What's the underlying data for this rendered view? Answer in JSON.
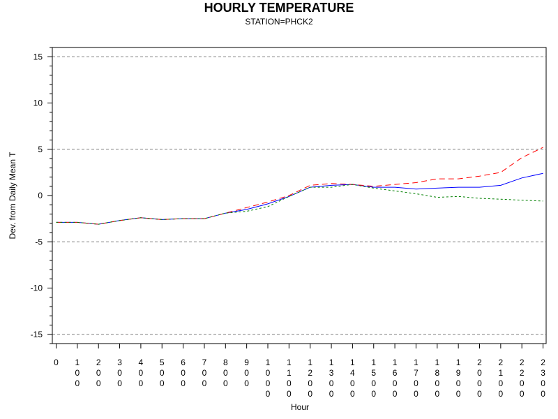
{
  "chart_data": {
    "type": "line",
    "title": "HOURLY TEMPERATURE",
    "subtitle": "STATION=PHCK2",
    "xlabel": "Hour",
    "ylabel": "Dev. from Daily Mean T",
    "x": [
      0,
      100,
      200,
      300,
      400,
      500,
      600,
      700,
      800,
      900,
      1000,
      1100,
      1200,
      1300,
      1400,
      1500,
      1600,
      1700,
      1800,
      1900,
      2000,
      2100,
      2200,
      2300
    ],
    "x_tick_labels": [
      "0",
      "100",
      "200",
      "300",
      "400",
      "500",
      "600",
      "700",
      "800",
      "900",
      "1000",
      "1100",
      "1200",
      "1300",
      "1400",
      "1500",
      "1600",
      "1700",
      "1800",
      "1900",
      "2000",
      "2100",
      "2200",
      "2300"
    ],
    "ylim": [
      -16,
      16
    ],
    "y_ticks": [
      -15,
      -10,
      -5,
      0,
      5,
      10,
      15
    ],
    "y_tick_labels": [
      "-15",
      "-10",
      "-5",
      "0",
      "5",
      "10",
      "15"
    ],
    "reference_lines": [
      -15,
      -5,
      5,
      15
    ],
    "grid": false,
    "series": [
      {
        "color": "#0000ff",
        "style": "solid",
        "values": [
          -2.9,
          -2.9,
          -3.1,
          -2.7,
          -2.4,
          -2.6,
          -2.5,
          -2.5,
          -1.9,
          -1.5,
          -0.9,
          -0.1,
          0.9,
          1.1,
          1.2,
          0.9,
          0.9,
          0.7,
          0.8,
          0.9,
          0.9,
          1.1,
          1.9,
          2.4
        ]
      },
      {
        "color": "#ff0000",
        "style": "longdash",
        "values": [
          -2.9,
          -2.9,
          -3.1,
          -2.7,
          -2.4,
          -2.6,
          -2.5,
          -2.5,
          -1.9,
          -1.3,
          -0.7,
          0.0,
          1.1,
          1.3,
          1.2,
          1.0,
          1.2,
          1.4,
          1.8,
          1.8,
          2.1,
          2.5,
          4.1,
          5.2
        ]
      },
      {
        "color": "#008000",
        "style": "shortdash",
        "values": [
          -2.9,
          -2.9,
          -3.1,
          -2.7,
          -2.4,
          -2.6,
          -2.5,
          -2.5,
          -1.9,
          -1.7,
          -1.2,
          -0.1,
          0.9,
          0.9,
          1.2,
          0.8,
          0.5,
          0.2,
          -0.2,
          -0.1,
          -0.3,
          -0.4,
          -0.5,
          -0.6
        ]
      }
    ]
  }
}
